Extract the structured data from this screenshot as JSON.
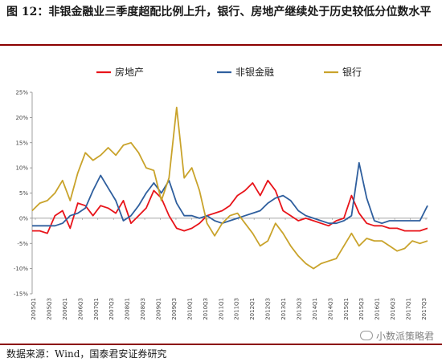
{
  "title": "图 12：非银金融业三季度超配比例上升，银行、房地产继续处于历史较低分位数水平",
  "source": "数据来源：Wind，国泰君安证券研究",
  "watermark": "小数派策略君",
  "colors": {
    "rule": "#8b0000",
    "series": [
      "#e8141a",
      "#2f5f9e",
      "#c9a32b"
    ]
  },
  "chart_data": {
    "type": "line",
    "ylim": [
      -15,
      25
    ],
    "yticks": [
      25,
      20,
      15,
      10,
      5,
      0,
      -5,
      -10,
      -15
    ],
    "ytick_labels": [
      "25%",
      "20%",
      "15%",
      "10%",
      "5%",
      "0%",
      "-5%",
      "-10%",
      "-15%"
    ],
    "xtick_labels": [
      "2005Q1",
      "2005Q3",
      "2006Q1",
      "2006Q3",
      "2007Q1",
      "2007Q3",
      "2008Q1",
      "2008Q3",
      "2009Q1",
      "2009Q3",
      "2010Q1",
      "2010Q3",
      "2011Q1",
      "2011Q3",
      "2012Q1",
      "2012Q3",
      "2013Q1",
      "2013Q3",
      "2014Q1",
      "2014Q3",
      "2015Q1",
      "2015Q3",
      "2016Q1",
      "2016Q3",
      "2017Q1",
      "2017Q3"
    ],
    "xlabel": "",
    "ylabel": "",
    "legend_position": "top",
    "series": [
      {
        "name": "房地产",
        "color": "#e8141a",
        "values": [
          -2.5,
          -2.5,
          -3.0,
          0.5,
          1.5,
          -2.0,
          3.0,
          2.5,
          0.5,
          2.5,
          2.0,
          1.0,
          3.5,
          -1.0,
          0.5,
          2.0,
          5.5,
          4.0,
          0.5,
          -2.0,
          -2.5,
          -2.0,
          -1.0,
          0.5,
          1.0,
          1.5,
          2.5,
          4.5,
          5.5,
          7.0,
          4.5,
          7.5,
          5.5,
          1.5,
          0.5,
          -0.5,
          0.0,
          -0.5,
          -1.0,
          -1.5,
          -0.5,
          0.0,
          4.5,
          1.0,
          -1.0,
          -1.5,
          -1.5,
          -2.0,
          -2.0,
          -2.5,
          -2.5,
          -2.5,
          -2.0
        ]
      },
      {
        "name": "非银金融",
        "color": "#2f5f9e",
        "values": [
          -1.5,
          -1.5,
          -1.5,
          -1.5,
          -1.0,
          0.5,
          1.0,
          2.0,
          5.5,
          8.5,
          6.0,
          3.5,
          -0.5,
          0.5,
          2.5,
          5.0,
          7.0,
          5.0,
          7.5,
          3.0,
          0.5,
          0.5,
          0.0,
          0.5,
          -0.5,
          -1.0,
          -0.5,
          0.0,
          0.5,
          1.0,
          1.5,
          3.0,
          4.0,
          4.5,
          3.5,
          1.5,
          0.5,
          0.0,
          -0.5,
          -1.0,
          -1.0,
          -0.5,
          0.5,
          11.0,
          4.0,
          -0.5,
          -1.0,
          -0.5,
          -0.5,
          -0.5,
          -0.5,
          -0.5,
          2.5
        ]
      },
      {
        "name": "银行",
        "color": "#c9a32b",
        "values": [
          1.5,
          3.0,
          3.5,
          5.0,
          7.5,
          3.5,
          9.0,
          13.0,
          11.5,
          12.5,
          14.0,
          12.5,
          14.5,
          15.0,
          13.0,
          10.0,
          9.5,
          3.5,
          8.0,
          22.0,
          8.0,
          10.0,
          5.5,
          -1.0,
          -3.5,
          -1.0,
          0.5,
          1.0,
          -1.0,
          -3.0,
          -5.5,
          -4.5,
          -1.0,
          -3.0,
          -5.5,
          -7.5,
          -9.0,
          -10.0,
          -9.0,
          -8.5,
          -8.0,
          -5.5,
          -3.0,
          -5.5,
          -4.0,
          -4.5,
          -4.5,
          -5.5,
          -6.5,
          -6.0,
          -4.5,
          -5.0,
          -4.5
        ]
      }
    ]
  }
}
